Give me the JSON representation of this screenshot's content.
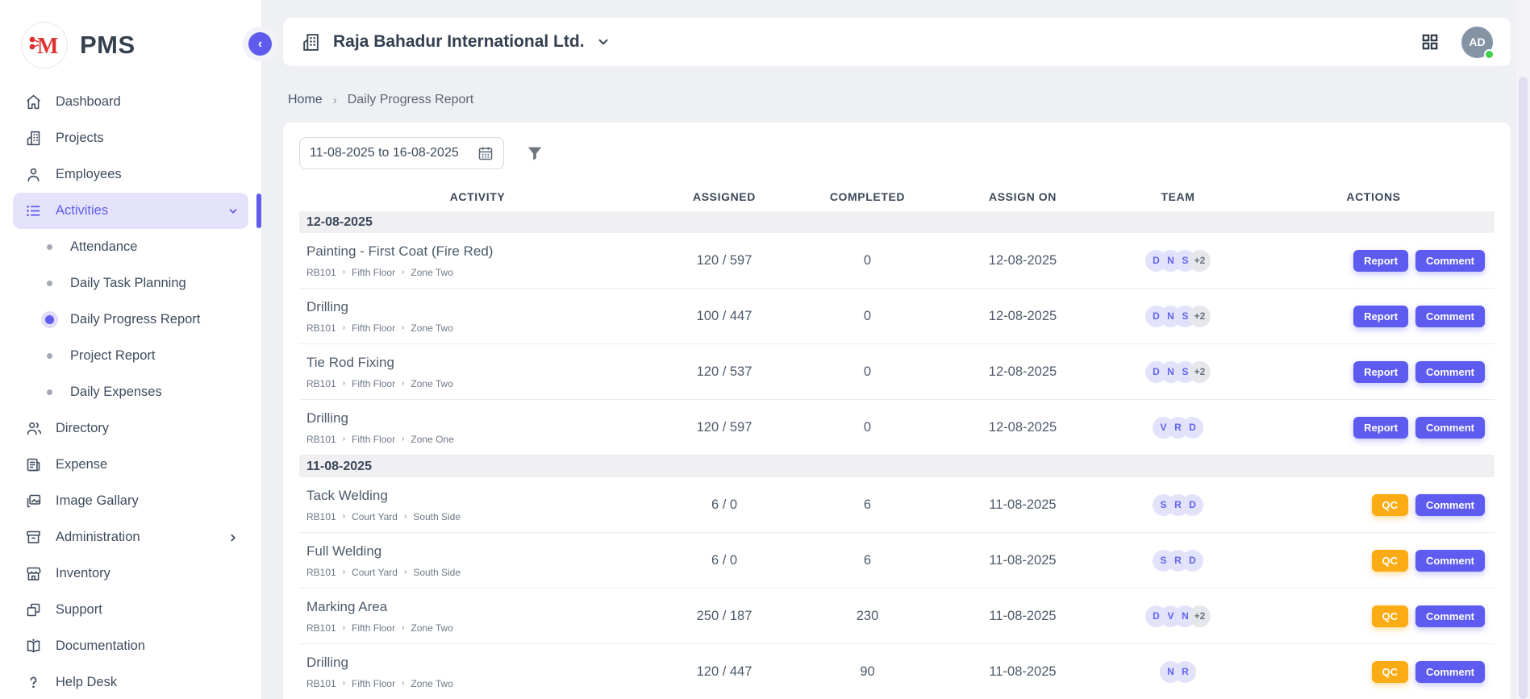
{
  "colors": {
    "accent": "#5f5ced",
    "accent_light": "#e4e3fb",
    "accent_btn": "#5d5bf0",
    "orange": "#fbab13",
    "avatar_bg": "#e2e2fb",
    "online": "#3fd24a",
    "brand_red": "#dd3333"
  },
  "app": {
    "brand": "PMS",
    "logo_letter": "M"
  },
  "sidebar": {
    "items": [
      {
        "label": "Dashboard",
        "icon": "home"
      },
      {
        "label": "Projects",
        "icon": "building"
      },
      {
        "label": "Employees",
        "icon": "person"
      },
      {
        "label": "Activities",
        "icon": "list",
        "active": true,
        "expanded": true,
        "children": [
          {
            "label": "Attendance"
          },
          {
            "label": "Daily Task Planning"
          },
          {
            "label": "Daily Progress Report",
            "active": true
          },
          {
            "label": "Project Report"
          },
          {
            "label": "Daily Expenses"
          }
        ]
      },
      {
        "label": "Directory",
        "icon": "people"
      },
      {
        "label": "Expense",
        "icon": "receipt"
      },
      {
        "label": "Image Gallary",
        "icon": "image"
      },
      {
        "label": "Administration",
        "icon": "archive",
        "has_submenu": true
      },
      {
        "label": "Inventory",
        "icon": "store"
      },
      {
        "label": "Support",
        "icon": "copy"
      },
      {
        "label": "Documentation",
        "icon": "book"
      },
      {
        "label": "Help Desk",
        "icon": "question"
      }
    ]
  },
  "header": {
    "company": "Raja Bahadur International Ltd.",
    "avatar_initials": "AD"
  },
  "breadcrumb": {
    "home": "Home",
    "current": "Daily Progress Report"
  },
  "filters": {
    "date_range": "11-08-2025 to 16-08-2025"
  },
  "table": {
    "columns": [
      "ACTIVITY",
      "ASSIGNED",
      "COMPLETED",
      "ASSIGN ON",
      "TEAM",
      "ACTIONS"
    ],
    "groups": [
      {
        "date": "12-08-2025",
        "rows": [
          {
            "title": "Painting - First Coat (Fire Red)",
            "path": [
              "RB101",
              "Fifth Floor",
              "Zone Two"
            ],
            "assigned": "120 / 597",
            "completed": "0",
            "assign_on": "12-08-2025",
            "team": [
              "D",
              "N",
              "S"
            ],
            "team_more": "+2",
            "actions": [
              {
                "label": "Report",
                "style": "purple"
              },
              {
                "label": "Comment",
                "style": "purple"
              }
            ]
          },
          {
            "title": "Drilling",
            "path": [
              "RB101",
              "Fifth Floor",
              "Zone Two"
            ],
            "assigned": "100 / 447",
            "completed": "0",
            "assign_on": "12-08-2025",
            "team": [
              "D",
              "N",
              "S"
            ],
            "team_more": "+2",
            "actions": [
              {
                "label": "Report",
                "style": "purple"
              },
              {
                "label": "Comment",
                "style": "purple"
              }
            ]
          },
          {
            "title": "Tie Rod Fixing",
            "path": [
              "RB101",
              "Fifth Floor",
              "Zone Two"
            ],
            "assigned": "120 / 537",
            "completed": "0",
            "assign_on": "12-08-2025",
            "team": [
              "D",
              "N",
              "S"
            ],
            "team_more": "+2",
            "actions": [
              {
                "label": "Report",
                "style": "purple"
              },
              {
                "label": "Comment",
                "style": "purple"
              }
            ]
          },
          {
            "title": "Drilling",
            "path": [
              "RB101",
              "Fifth Floor",
              "Zone One"
            ],
            "assigned": "120 / 597",
            "completed": "0",
            "assign_on": "12-08-2025",
            "team": [
              "V",
              "R",
              "D"
            ],
            "team_more": null,
            "actions": [
              {
                "label": "Report",
                "style": "purple"
              },
              {
                "label": "Comment",
                "style": "purple"
              }
            ]
          }
        ]
      },
      {
        "date": "11-08-2025",
        "rows": [
          {
            "title": "Tack Welding",
            "path": [
              "RB101",
              "Court Yard",
              "South Side"
            ],
            "assigned": "6 / 0",
            "completed": "6",
            "assign_on": "11-08-2025",
            "team": [
              "S",
              "R",
              "D"
            ],
            "team_more": null,
            "actions": [
              {
                "label": "QC",
                "style": "orange"
              },
              {
                "label": "Comment",
                "style": "purple"
              }
            ]
          },
          {
            "title": "Full Welding",
            "path": [
              "RB101",
              "Court Yard",
              "South Side"
            ],
            "assigned": "6 / 0",
            "completed": "6",
            "assign_on": "11-08-2025",
            "team": [
              "S",
              "R",
              "D"
            ],
            "team_more": null,
            "actions": [
              {
                "label": "QC",
                "style": "orange"
              },
              {
                "label": "Comment",
                "style": "purple"
              }
            ]
          },
          {
            "title": "Marking Area",
            "path": [
              "RB101",
              "Fifth Floor",
              "Zone Two"
            ],
            "assigned": "250 / 187",
            "completed": "230",
            "assign_on": "11-08-2025",
            "team": [
              "D",
              "V",
              "N"
            ],
            "team_more": "+2",
            "actions": [
              {
                "label": "QC",
                "style": "orange"
              },
              {
                "label": "Comment",
                "style": "purple"
              }
            ]
          },
          {
            "title": "Drilling",
            "path": [
              "RB101",
              "Fifth Floor",
              "Zone Two"
            ],
            "assigned": "120 / 447",
            "completed": "90",
            "assign_on": "11-08-2025",
            "team": [
              "N",
              "R"
            ],
            "team_more": null,
            "actions": [
              {
                "label": "QC",
                "style": "orange"
              },
              {
                "label": "Comment",
                "style": "purple"
              }
            ]
          }
        ]
      }
    ]
  }
}
